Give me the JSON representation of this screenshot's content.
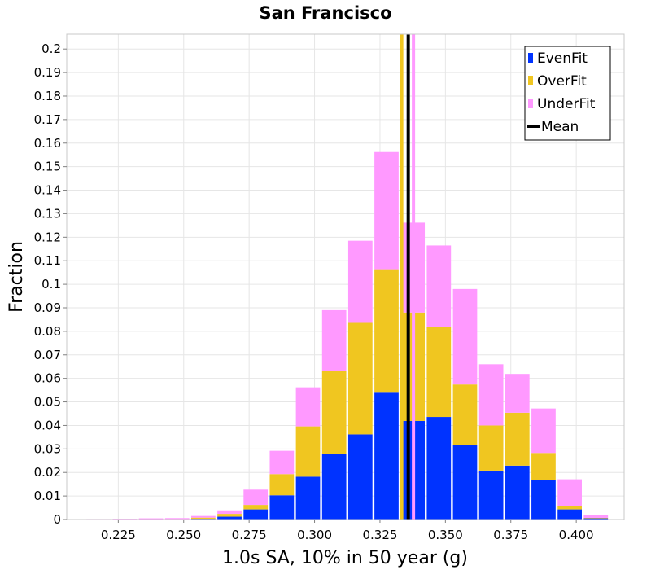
{
  "chart_data": {
    "type": "bar",
    "stacked": true,
    "title": "San Francisco",
    "xlabel": "1.0s SA, 10% in 50 year (g)",
    "ylabel": "Fraction",
    "xlim": [
      0.2053,
      0.4183
    ],
    "ylim": [
      0,
      0.2063
    ],
    "bin_width": 0.01,
    "x_ticks": [
      0.225,
      0.25,
      0.275,
      0.3,
      0.325,
      0.35,
      0.375,
      0.4
    ],
    "x_tick_labels": [
      "0.225",
      "0.250",
      "0.275",
      "0.300",
      "0.325",
      "0.350",
      "0.375",
      "0.400"
    ],
    "y_ticks": [
      0,
      0.01,
      0.02,
      0.03,
      0.04,
      0.05,
      0.06,
      0.07,
      0.08,
      0.09,
      0.1,
      0.11,
      0.12,
      0.13,
      0.14,
      0.15,
      0.16,
      0.17,
      0.18,
      0.19,
      0.2
    ],
    "y_tick_labels": [
      "0",
      "0.01",
      "0.02",
      "0.03",
      "0.04",
      "0.05",
      "0.06",
      "0.07",
      "0.08",
      "0.09",
      "0.1",
      "0.11",
      "0.12",
      "0.13",
      "0.14",
      "0.15",
      "0.16",
      "0.17",
      "0.18",
      "0.19",
      "0.2"
    ],
    "bin_centers": [
      0.2175,
      0.2275,
      0.2375,
      0.2475,
      0.2575,
      0.2675,
      0.2775,
      0.2875,
      0.2975,
      0.3075,
      0.3175,
      0.3275,
      0.3375,
      0.3475,
      0.3575,
      0.3675,
      0.3775,
      0.3875,
      0.3975,
      0.4075
    ],
    "series": [
      {
        "name": "EvenFit",
        "color": "#0033ff",
        "values": [
          0,
          0,
          0,
          0,
          0.0003,
          0.0012,
          0.0043,
          0.0103,
          0.0182,
          0.0278,
          0.0362,
          0.0539,
          0.0419,
          0.0436,
          0.0318,
          0.0208,
          0.0229,
          0.0167,
          0.0043,
          0.0005
        ]
      },
      {
        "name": "OverFit",
        "color": "#f0c620",
        "values": [
          0,
          0,
          0,
          0.0002,
          0.0005,
          0.0012,
          0.0019,
          0.009,
          0.0214,
          0.0355,
          0.0474,
          0.0525,
          0.0461,
          0.0384,
          0.0256,
          0.0192,
          0.0225,
          0.0116,
          0.0014,
          0.0002
        ]
      },
      {
        "name": "UnderFit",
        "color": "#ff99ff",
        "values": [
          0.0002,
          0.0003,
          0.0005,
          0.0004,
          0.0007,
          0.0015,
          0.0065,
          0.0099,
          0.0166,
          0.0257,
          0.0349,
          0.0498,
          0.0382,
          0.0345,
          0.0406,
          0.026,
          0.0165,
          0.0189,
          0.0114,
          0.0011
        ]
      }
    ],
    "vertical_lines": [
      {
        "name": "OverFit mean",
        "x": 0.3333,
        "color": "#f0c620"
      },
      {
        "name": "UnderFit mean",
        "x": 0.3378,
        "color": "#ff99ff"
      },
      {
        "name": "Mean",
        "x": 0.3358,
        "color": "#000000"
      }
    ],
    "legend": {
      "position": "top-right",
      "entries": [
        {
          "label": "EvenFit",
          "color": "#0033ff"
        },
        {
          "label": "OverFit",
          "color": "#f0c620"
        },
        {
          "label": "UnderFit",
          "color": "#ff99ff"
        },
        {
          "label": "Mean",
          "color": "#000000",
          "kind": "line"
        }
      ]
    },
    "grid": true
  }
}
